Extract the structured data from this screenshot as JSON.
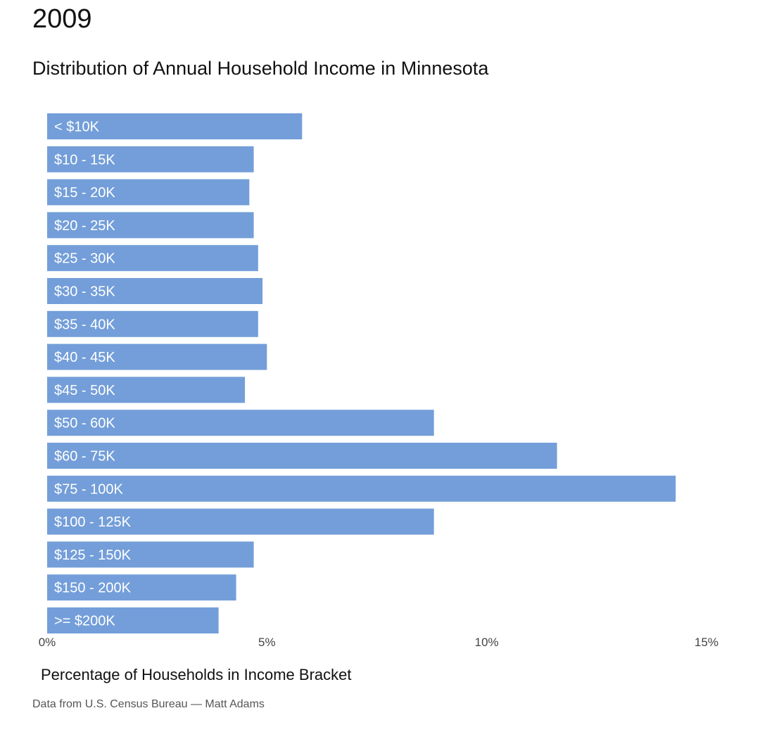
{
  "header": {
    "year": "2009",
    "subtitle": "Distribution of Annual Household Income in Minnesota"
  },
  "footer": {
    "caption": "Data from U.S. Census Bureau — Matt Adams"
  },
  "colors": {
    "bar": "#739ed9"
  },
  "chart_data": {
    "type": "bar",
    "orientation": "horizontal",
    "title": "2009",
    "subtitle": "Distribution of Annual Household Income in Minnesota",
    "xlabel": "Percentage of Households in Income Bracket",
    "ylabel": "",
    "xlim": [
      0,
      15
    ],
    "x_ticks": [
      0,
      5,
      10,
      15
    ],
    "x_tick_labels": [
      "0%",
      "5%",
      "10%",
      "15%"
    ],
    "grid": false,
    "categories": [
      "< $10K",
      "$10 - 15K",
      "$15 - 20K",
      "$20 - 25K",
      "$25 - 30K",
      "$30 - 35K",
      "$35 - 40K",
      "$40 - 45K",
      "$45 - 50K",
      "$50 - 60K",
      "$60 - 75K",
      "$75 - 100K",
      "$100 - 125K",
      "$125 - 150K",
      "$150 - 200K",
      ">= $200K"
    ],
    "values": [
      5.8,
      4.7,
      4.6,
      4.7,
      4.8,
      4.9,
      4.8,
      5.0,
      4.5,
      8.8,
      11.6,
      14.3,
      8.8,
      4.7,
      4.3,
      3.9
    ]
  }
}
